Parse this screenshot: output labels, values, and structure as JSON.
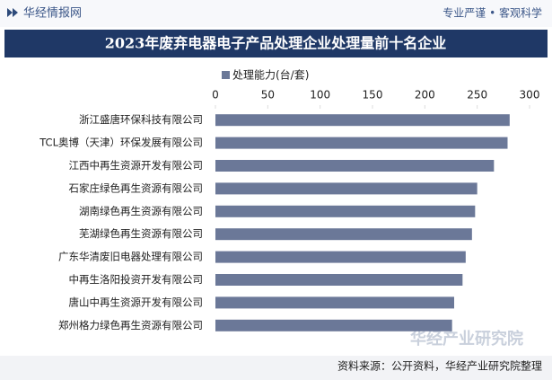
{
  "header": {
    "logo": "华经情报网",
    "slogan": "专业严谨 • 客观科学"
  },
  "chart_data": {
    "type": "bar",
    "orientation": "horizontal",
    "title": "2023年废弃电器电子产品处理企业处理量前十名企业",
    "categories": [
      "浙江盛唐环保科技有限公司",
      "TCL奥博（天津）环保发展有限公司",
      "江西中再生资源开发有限公司",
      "石家庄绿色再生资源有限公司",
      "湖南绿色再生资源有限公司",
      "芜湖绿色再生资源有限公司",
      "广东华清废旧电器处理有限公司",
      "中再生洛阳投资开发有限公司",
      "唐山中再生资源开发有限公司",
      "郑州格力绿色再生资源有限公司"
    ],
    "series": [
      {
        "name": "处理能力(台/套)",
        "color": "#6b7898",
        "values": [
          281,
          279,
          266,
          250,
          248,
          245,
          239,
          236,
          228,
          226
        ]
      }
    ],
    "xlim": [
      0,
      300
    ],
    "xticks": [
      0,
      50,
      100,
      150,
      200,
      250,
      300
    ],
    "source": "资料来源：公开资料，华经产业研究院整理",
    "watermark": "华经产业研究院"
  }
}
